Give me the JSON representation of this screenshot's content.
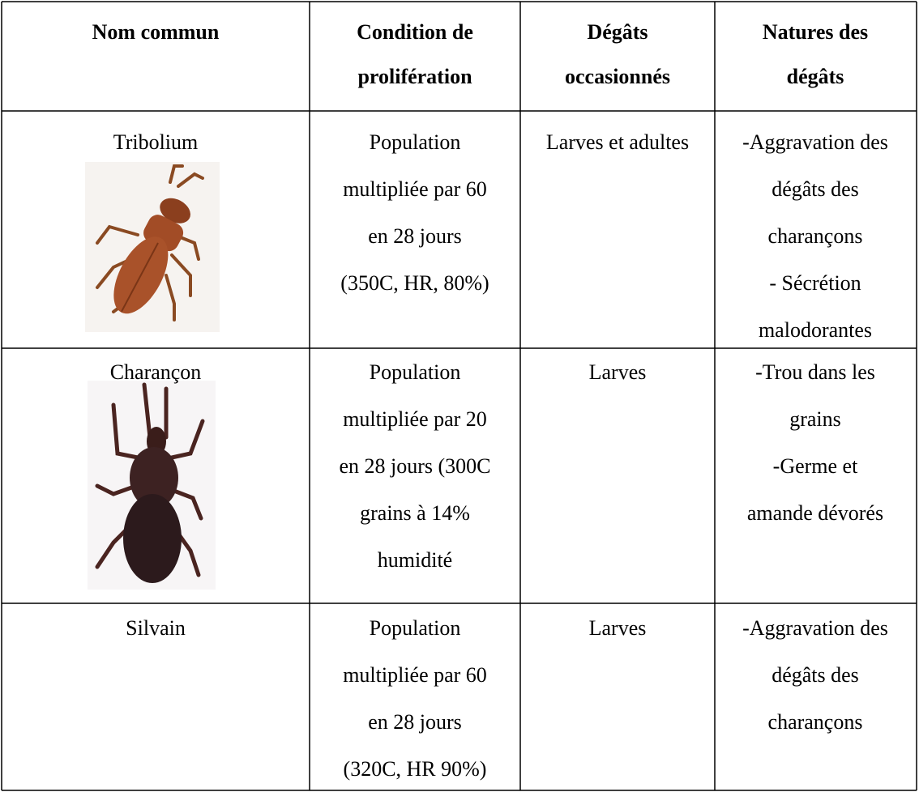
{
  "table": {
    "header": [
      [
        "Nom commun"
      ],
      [
        "Condition de",
        "prolifération"
      ],
      [
        "Dégâts",
        "occasionnés"
      ],
      [
        "Natures des",
        "dégâts"
      ]
    ],
    "rows": [
      [
        [
          "Tribolium"
        ],
        [
          "Population",
          "multipliée par 60",
          "en 28 jours",
          "(350C, HR, 80%)"
        ],
        [
          "Larves et adultes"
        ],
        [
          "-Aggravation des",
          "dégâts des",
          "charançons",
          "- Sécrétion",
          "malodorantes"
        ]
      ],
      [
        [
          "Charançon"
        ],
        [
          "Population",
          "multipliée par 20",
          "en 28 jours (300C",
          "grains à 14%",
          "humidité"
        ],
        [
          "Larves"
        ],
        [
          "-Trou dans les",
          "grains",
          "-Germe et",
          "amande dévorés"
        ]
      ],
      [
        [
          "Silvain"
        ],
        [
          "Population",
          "multipliée par 60",
          "en 28 jours",
          "(320C, HR 90%)"
        ],
        [
          "Larves"
        ],
        [
          "-Aggravation des",
          "dégâts des",
          "charançons"
        ]
      ]
    ]
  }
}
